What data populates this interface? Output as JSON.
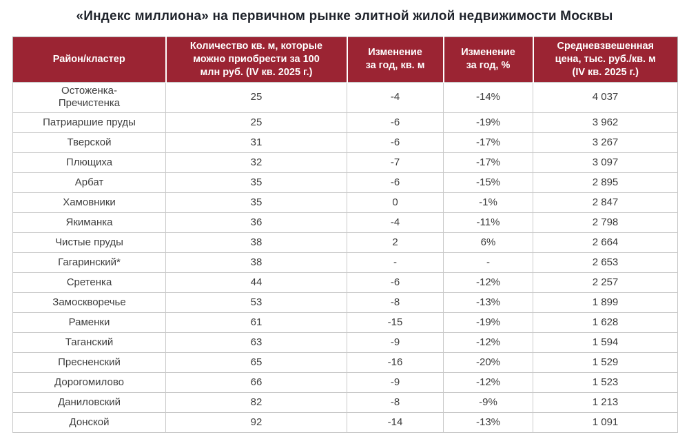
{
  "colors": {
    "header_bg": "#9B2433",
    "header_text": "#FFFFFF",
    "body_text": "#3D3D3D",
    "grid_line": "#C9C9C9",
    "title_text": "#1F232B"
  },
  "chart_data": {
    "type": "table",
    "title": "«Индекс миллиона» на первичном рынке элитной жилой недвижимости Москвы",
    "columns": [
      {
        "key": "district",
        "label": "Район/кластер"
      },
      {
        "key": "qty",
        "label": "Количество кв. м, которые\nможно приобрести за 100\nмлн руб. (IV кв. 2025 г.)"
      },
      {
        "key": "change_sqm",
        "label": "Изменение\nза год, кв. м"
      },
      {
        "key": "change_pct",
        "label": "Изменение\nза год, %"
      },
      {
        "key": "price",
        "label": "Средневзвешенная\nцена, тыс. руб./кв. м\n(IV кв. 2025 г.)"
      }
    ],
    "rows": [
      {
        "district": "Остоженка-\nПречистенка",
        "qty": "25",
        "change_sqm": "-4",
        "change_pct": "-14%",
        "price": "4 037"
      },
      {
        "district": "Патриаршие пруды",
        "qty": "25",
        "change_sqm": "-6",
        "change_pct": "-19%",
        "price": "3 962"
      },
      {
        "district": "Тверской",
        "qty": "31",
        "change_sqm": "-6",
        "change_pct": "-17%",
        "price": "3 267"
      },
      {
        "district": "Плющиха",
        "qty": "32",
        "change_sqm": "-7",
        "change_pct": "-17%",
        "price": "3 097"
      },
      {
        "district": "Арбат",
        "qty": "35",
        "change_sqm": "-6",
        "change_pct": "-15%",
        "price": "2 895"
      },
      {
        "district": "Хамовники",
        "qty": "35",
        "change_sqm": "0",
        "change_pct": "-1%",
        "price": "2 847"
      },
      {
        "district": "Якиманка",
        "qty": "36",
        "change_sqm": "-4",
        "change_pct": "-11%",
        "price": "2 798"
      },
      {
        "district": "Чистые пруды",
        "qty": "38",
        "change_sqm": "2",
        "change_pct": "6%",
        "price": "2 664"
      },
      {
        "district": "Гагаринский*",
        "qty": "38",
        "change_sqm": "-",
        "change_pct": "-",
        "price": "2 653"
      },
      {
        "district": "Сретенка",
        "qty": "44",
        "change_sqm": "-6",
        "change_pct": "-12%",
        "price": "2 257"
      },
      {
        "district": "Замоскворечье",
        "qty": "53",
        "change_sqm": "-8",
        "change_pct": "-13%",
        "price": "1 899"
      },
      {
        "district": "Раменки",
        "qty": "61",
        "change_sqm": "-15",
        "change_pct": "-19%",
        "price": "1 628"
      },
      {
        "district": "Таганский",
        "qty": "63",
        "change_sqm": "-9",
        "change_pct": "-12%",
        "price": "1 594"
      },
      {
        "district": "Пресненский",
        "qty": "65",
        "change_sqm": "-16",
        "change_pct": "-20%",
        "price": "1 529"
      },
      {
        "district": "Дорогомилово",
        "qty": "66",
        "change_sqm": "-9",
        "change_pct": "-12%",
        "price": "1 523"
      },
      {
        "district": "Даниловский",
        "qty": "82",
        "change_sqm": "-8",
        "change_pct": "-9%",
        "price": "1 213"
      },
      {
        "district": "Донской",
        "qty": "92",
        "change_sqm": "-14",
        "change_pct": "-13%",
        "price": "1 091"
      }
    ]
  }
}
